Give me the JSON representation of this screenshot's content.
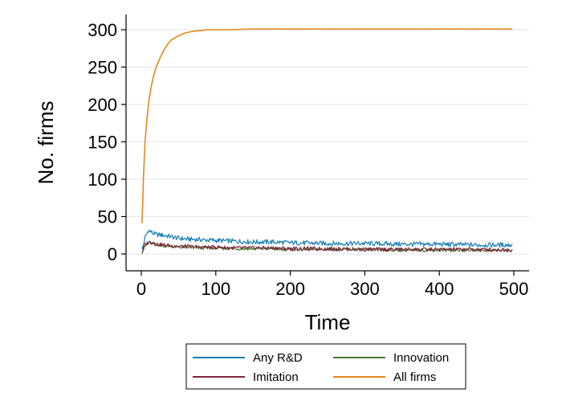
{
  "chart_data": {
    "type": "line",
    "title": "",
    "xlabel": "Time",
    "ylabel": "No. firms",
    "xlim": [
      0,
      500
    ],
    "ylim": [
      0,
      300
    ],
    "xticks": [
      0,
      100,
      200,
      300,
      400,
      500
    ],
    "yticks": [
      0,
      50,
      100,
      150,
      200,
      250,
      300
    ],
    "grid": "horizontal",
    "legend_position": "bottom",
    "series": [
      {
        "name": "Any R&D",
        "color": "#1a7fb5",
        "x": [
          1,
          5,
          10,
          15,
          20,
          30,
          40,
          50,
          60,
          80,
          100,
          125,
          150,
          175,
          200,
          250,
          300,
          350,
          400,
          450,
          498
        ],
        "y": [
          5,
          22,
          32,
          28,
          26,
          25,
          23,
          21,
          20,
          19,
          18,
          17,
          16,
          16,
          15,
          14,
          14,
          13,
          13,
          12,
          12
        ]
      },
      {
        "name": "Innovation",
        "color": "#4a7a32",
        "x": [
          1,
          5,
          10,
          15,
          20,
          30,
          40,
          50,
          60,
          80,
          100,
          125,
          150,
          175,
          200,
          250,
          300,
          350,
          400,
          450,
          498
        ],
        "y": [
          2,
          10,
          15,
          14,
          13,
          11,
          10,
          9,
          9,
          8,
          8,
          7,
          7,
          7,
          6,
          6,
          6,
          5,
          5,
          5,
          5
        ]
      },
      {
        "name": "Imitation",
        "color": "#7b2a3a",
        "x": [
          1,
          5,
          10,
          15,
          20,
          30,
          40,
          50,
          60,
          80,
          100,
          125,
          150,
          175,
          200,
          250,
          300,
          350,
          400,
          450,
          498
        ],
        "y": [
          3,
          12,
          16,
          15,
          13,
          12,
          11,
          10,
          10,
          9,
          9,
          8,
          8,
          8,
          7,
          7,
          6,
          6,
          6,
          6,
          5
        ]
      },
      {
        "name": "All firms",
        "color": "#e38a1c",
        "x": [
          1,
          3,
          5,
          8,
          10,
          13,
          16,
          20,
          25,
          30,
          35,
          40,
          50,
          60,
          70,
          80,
          90,
          100,
          120,
          150,
          200,
          300,
          400,
          498
        ],
        "y": [
          41,
          105,
          150,
          185,
          203,
          222,
          237,
          250,
          262,
          272,
          280,
          286,
          292,
          296,
          298,
          299,
          300,
          300,
          300,
          301,
          301,
          301,
          301,
          301
        ]
      }
    ],
    "legend_order": [
      "Any R&D",
      "Innovation",
      "Imitation",
      "All firms"
    ]
  }
}
